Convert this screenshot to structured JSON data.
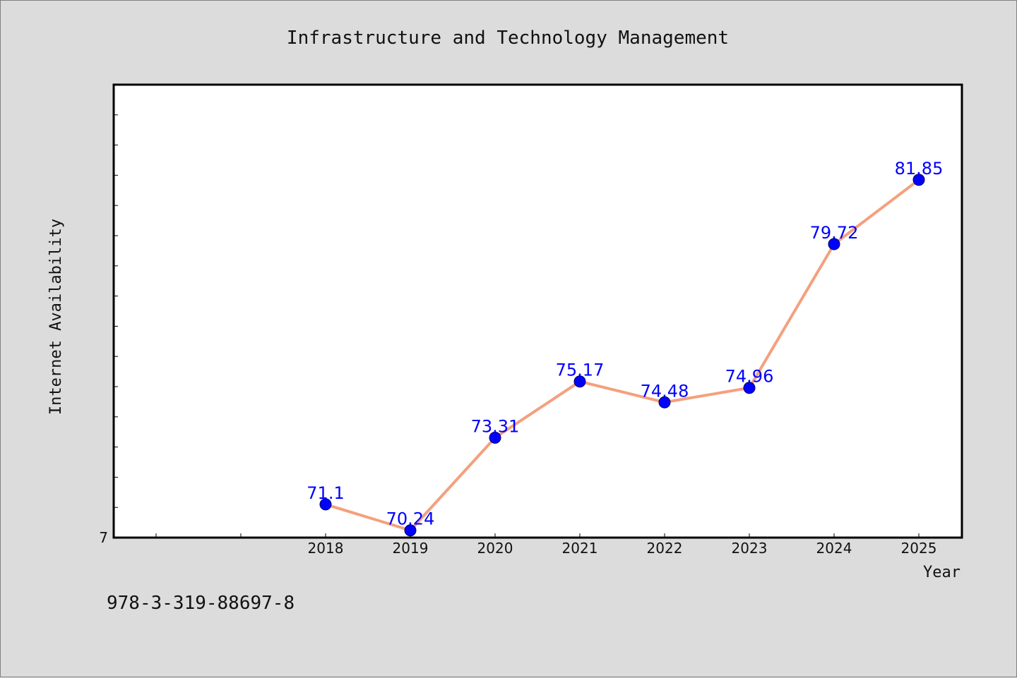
{
  "chart_data": {
    "type": "line",
    "title": "Infrastructure and Technology Management",
    "xlabel": "Year",
    "ylabel": "Internet Availability",
    "categories": [
      "2018",
      "2019",
      "2020",
      "2021",
      "2022",
      "2023",
      "2024",
      "2025"
    ],
    "values": [
      71.1,
      70.24,
      73.31,
      75.17,
      74.48,
      74.96,
      79.72,
      81.85
    ],
    "data_labels": [
      "71.1",
      "70.24",
      "73.31",
      "75.17",
      "74.48",
      "74.96",
      "79.72",
      "81.85"
    ],
    "ytick_labels": [
      "7"
    ],
    "ylim": [
      70,
      85
    ],
    "line_color": "#f4a07e",
    "marker_color": "#0000ff",
    "label_color": "#0000ff",
    "grid": false,
    "legend": "none"
  },
  "footer": {
    "code": "978-3-319-88697-8"
  }
}
